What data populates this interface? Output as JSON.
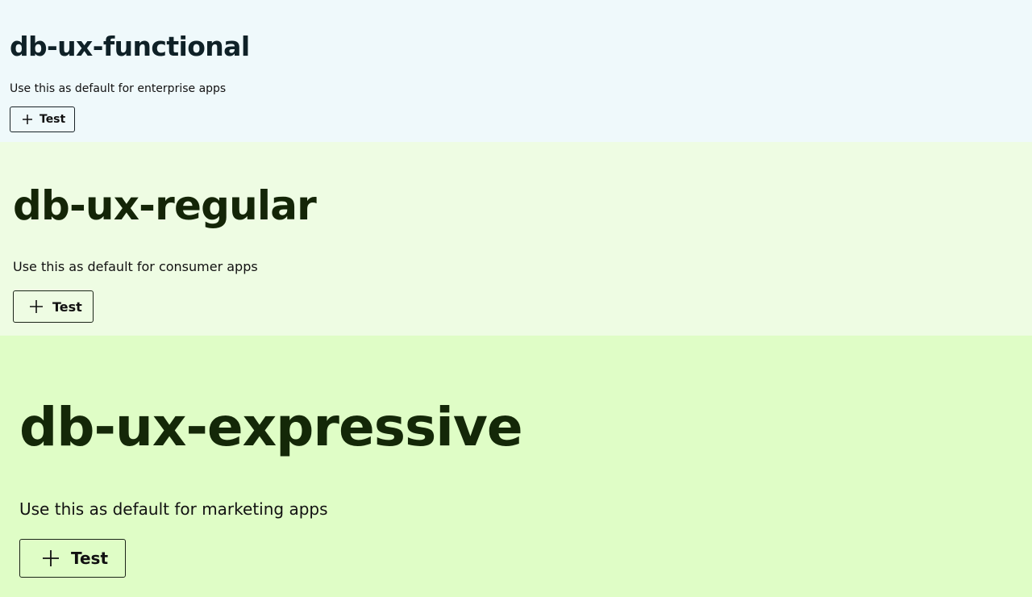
{
  "sections": [
    {
      "title": "db-ux-functional",
      "description": "Use this as default for enterprise apps",
      "button_label": "Test",
      "button_icon": "plus-icon",
      "background": "#eff9fb"
    },
    {
      "title": "db-ux-regular",
      "description": "Use this as default for consumer apps",
      "button_label": "Test",
      "button_icon": "plus-icon",
      "background": "#eefce3"
    },
    {
      "title": "db-ux-expressive",
      "description": "Use this as default for marketing apps",
      "button_label": "Test",
      "button_icon": "plus-icon",
      "background": "#dffdc6"
    }
  ]
}
